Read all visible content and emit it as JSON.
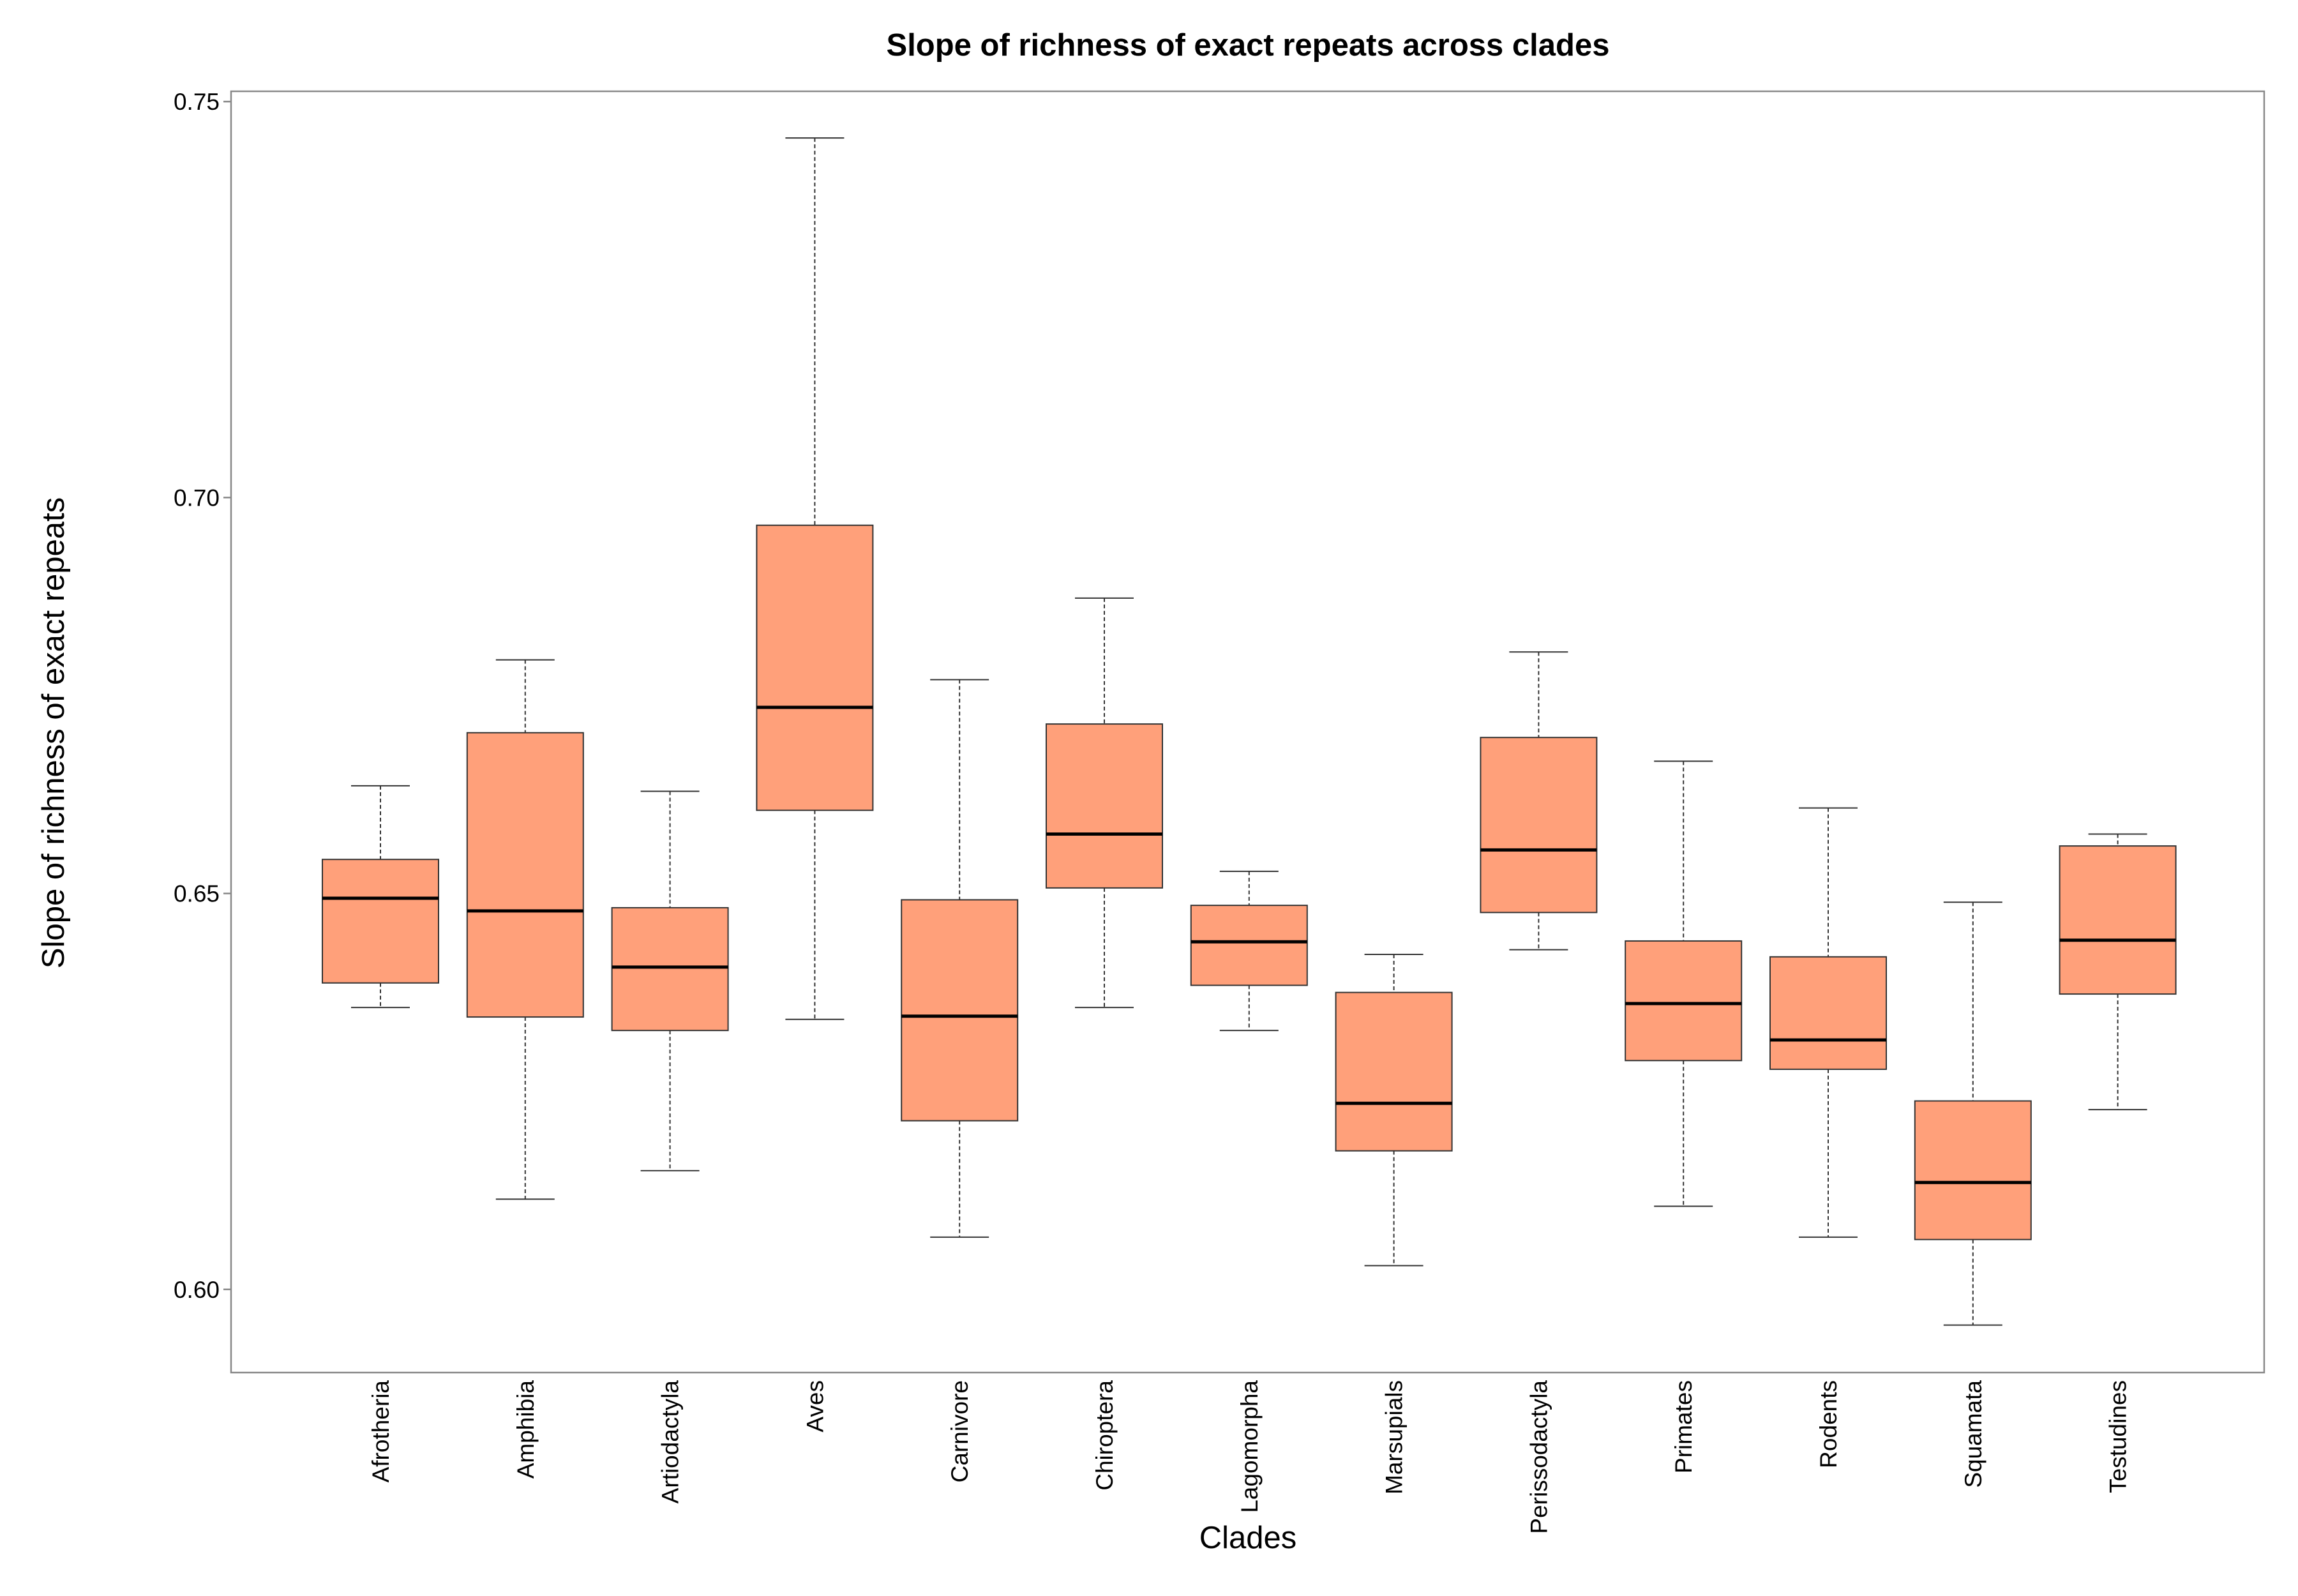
{
  "chart_data": {
    "type": "boxplot",
    "title": "Slope of richness of exact repeats across clades",
    "xlabel": "Clades",
    "ylabel": "Slope of richness of exact repeats",
    "ylim": [
      0.5895,
      0.7513
    ],
    "yticks": [
      "0.60",
      "0.65",
      "0.70",
      "0.75"
    ],
    "grid": false,
    "box_fill": "#FFA07A",
    "box_stroke": "#333333",
    "median_color": "#000000",
    "categories": [
      "Afrotheria",
      "Amphibia",
      "Artiodactyla",
      "Aves",
      "Carnivore",
      "Chiroptera",
      "Lagomorpha",
      "Marsupials",
      "Perissodactyla",
      "Primates",
      "Rodents",
      "Squamata",
      "Testudines"
    ],
    "series": [
      {
        "category": "Afrotheria",
        "min": 0.6356,
        "q1": 0.6387,
        "median": 0.6494,
        "q3": 0.6543,
        "max": 0.6636
      },
      {
        "category": "Amphibia",
        "min": 0.6114,
        "q1": 0.6344,
        "median": 0.6478,
        "q3": 0.6703,
        "max": 0.6795
      },
      {
        "category": "Artiodactyla",
        "min": 0.615,
        "q1": 0.6327,
        "median": 0.6407,
        "q3": 0.6482,
        "max": 0.6629
      },
      {
        "category": "Aves",
        "min": 0.6341,
        "q1": 0.6605,
        "median": 0.6735,
        "q3": 0.6965,
        "max": 0.7454
      },
      {
        "category": "Carnivore",
        "min": 0.6066,
        "q1": 0.6213,
        "median": 0.6345,
        "q3": 0.6492,
        "max": 0.677
      },
      {
        "category": "Chiroptera",
        "min": 0.6356,
        "q1": 0.6507,
        "median": 0.6575,
        "q3": 0.6714,
        "max": 0.6873
      },
      {
        "category": "Lagomorpha",
        "min": 0.6327,
        "q1": 0.6384,
        "median": 0.6439,
        "q3": 0.6485,
        "max": 0.6528
      },
      {
        "category": "Marsupials",
        "min": 0.603,
        "q1": 0.6175,
        "median": 0.6235,
        "q3": 0.6375,
        "max": 0.6423
      },
      {
        "category": "Perissodactyla",
        "min": 0.6429,
        "q1": 0.6476,
        "median": 0.6555,
        "q3": 0.6697,
        "max": 0.6805
      },
      {
        "category": "Primates",
        "min": 0.6105,
        "q1": 0.6289,
        "median": 0.6361,
        "q3": 0.644,
        "max": 0.6667
      },
      {
        "category": "Rodents",
        "min": 0.6066,
        "q1": 0.6278,
        "median": 0.6315,
        "q3": 0.642,
        "max": 0.6608
      },
      {
        "category": "Squamata",
        "min": 0.5955,
        "q1": 0.6063,
        "median": 0.6135,
        "q3": 0.6238,
        "max": 0.6489
      },
      {
        "category": "Testudines",
        "min": 0.6227,
        "q1": 0.6373,
        "median": 0.6441,
        "q3": 0.656,
        "max": 0.6575
      }
    ]
  }
}
